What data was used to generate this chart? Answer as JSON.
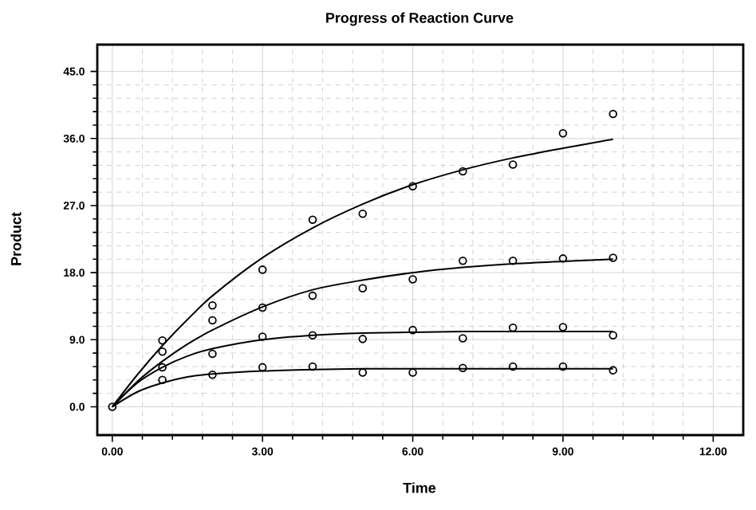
{
  "chart_data": {
    "type": "scatter",
    "title": "Progress of Reaction Curve",
    "xlabel": "Time",
    "ylabel": "Product",
    "xlim": [
      -0.3,
      12.6
    ],
    "ylim": [
      -3.8,
      48.6
    ],
    "xticks": [
      {
        "value": 0,
        "label": "0.00"
      },
      {
        "value": 3,
        "label": "3.00"
      },
      {
        "value": 6,
        "label": "6.00"
      },
      {
        "value": 9,
        "label": "9.00"
      },
      {
        "value": 12,
        "label": "12.00"
      }
    ],
    "yticks": [
      {
        "value": 0,
        "label": "0.0"
      },
      {
        "value": 9,
        "label": "9.0"
      },
      {
        "value": 18,
        "label": "18.0"
      },
      {
        "value": 27,
        "label": "27.0"
      },
      {
        "value": 36,
        "label": "36.0"
      },
      {
        "value": 45,
        "label": "45.0"
      }
    ],
    "grid": true,
    "series": [
      {
        "marker": "circle",
        "color": "#000000",
        "x": [
          0,
          1,
          2,
          3,
          4,
          5,
          6,
          7,
          8,
          9,
          10
        ],
        "values": [
          0,
          8.9,
          13.6,
          18.4,
          25.1,
          25.9,
          29.6,
          31.6,
          32.5,
          36.7,
          39.3
        ]
      },
      {
        "marker": "circle",
        "color": "#000000",
        "x": [
          1,
          2,
          3,
          4,
          5,
          6,
          7,
          8,
          9,
          10
        ],
        "values": [
          7.4,
          11.6,
          13.3,
          14.9,
          15.9,
          17.1,
          19.6,
          19.6,
          19.9,
          20.0
        ]
      },
      {
        "marker": "circle",
        "color": "#000000",
        "x": [
          1,
          2,
          3,
          4,
          5,
          6,
          7,
          8,
          9,
          10
        ],
        "values": [
          5.3,
          7.1,
          9.4,
          9.6,
          9.1,
          10.3,
          9.2,
          10.6,
          10.7,
          9.6
        ]
      },
      {
        "marker": "circle",
        "color": "#000000",
        "x": [
          1,
          2,
          3,
          4,
          5,
          6,
          7,
          8,
          9,
          10
        ],
        "values": [
          3.6,
          4.3,
          5.3,
          5.4,
          4.6,
          4.6,
          5.2,
          5.4,
          5.4,
          4.9
        ]
      },
      {
        "type": "line",
        "color": "#000000",
        "x": [
          0,
          0.5,
          1,
          1.5,
          2,
          3,
          4,
          5,
          6,
          7,
          8,
          9,
          10
        ],
        "values": [
          0,
          4.3,
          8.2,
          11.7,
          14.9,
          20.0,
          24.0,
          27.2,
          29.8,
          31.8,
          33.4,
          34.7,
          35.9
        ]
      },
      {
        "type": "line",
        "color": "#000000",
        "x": [
          0,
          0.5,
          1,
          1.5,
          2,
          3,
          4,
          5,
          6,
          7,
          8,
          9,
          10
        ],
        "values": [
          0,
          3.4,
          6.1,
          8.4,
          10.3,
          13.4,
          15.7,
          17.0,
          18.0,
          18.7,
          19.2,
          19.5,
          19.8
        ]
      },
      {
        "type": "line",
        "color": "#000000",
        "x": [
          0,
          0.5,
          1,
          1.5,
          2,
          3,
          4,
          5,
          6,
          7,
          8,
          9,
          10
        ],
        "values": [
          0,
          3.2,
          5.3,
          6.8,
          7.8,
          9.0,
          9.6,
          9.9,
          10.0,
          10.1,
          10.1,
          10.1,
          10.1
        ]
      },
      {
        "type": "line",
        "color": "#000000",
        "x": [
          0,
          0.5,
          1,
          1.5,
          2,
          3,
          4,
          5,
          6,
          7,
          8,
          9,
          10
        ],
        "values": [
          0,
          2.0,
          3.2,
          4.0,
          4.4,
          4.8,
          5.0,
          5.1,
          5.1,
          5.1,
          5.1,
          5.1,
          5.1
        ]
      }
    ]
  }
}
